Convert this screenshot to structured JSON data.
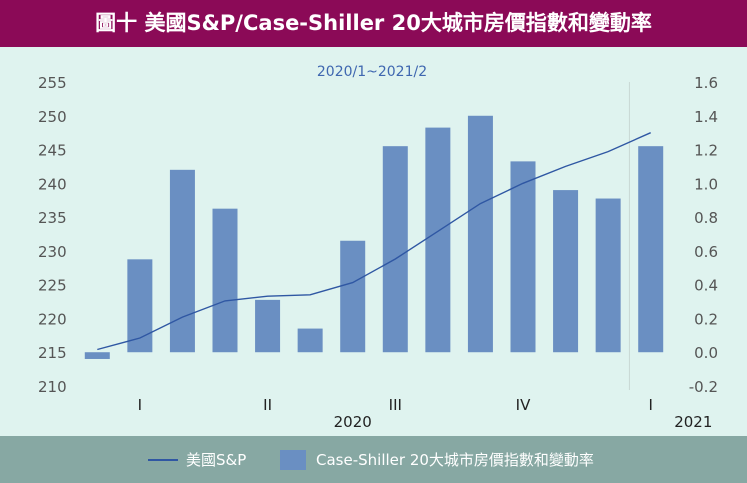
{
  "header": {
    "title": "圖十 美國S&P/Case-Shiller 20大城市房價指數和變動率"
  },
  "legend": {
    "line_label": "美國S&P",
    "bar_label": "Case-Shiller 20大城市房價指數和變動率"
  },
  "colors": {
    "title_bg": "#8b0a57",
    "plot_bg": "#dff3ef",
    "legend_bg": "#87a8a3",
    "bar": "#6a8fc2",
    "line": "#2f57a3",
    "axis_text": "#555555",
    "subtitle": "#3f67b0"
  },
  "chart_data": {
    "type": "bar",
    "title": "圖十 美國S&P/Case-Shiller 20大城市房價指數和變動率",
    "subtitle": "2020/1~2021/2",
    "y_left": {
      "ticks": [
        210,
        215,
        220,
        225,
        230,
        235,
        240,
        245,
        250,
        255
      ],
      "range": [
        210,
        255
      ]
    },
    "y_right": {
      "ticks": [
        -0.2,
        0.0,
        0.2,
        0.4,
        0.6,
        0.8,
        1.0,
        1.2,
        1.4,
        1.6
      ],
      "tick_labels": [
        "-0.2",
        "0.0",
        "0.2",
        "0.4",
        "0.6",
        "0.8",
        "1.0",
        "1.2",
        "1.4",
        "1.6"
      ],
      "range": [
        -0.2,
        1.6
      ]
    },
    "x_quarter_labels": [
      {
        "label": "I",
        "month_index": 2
      },
      {
        "label": "II",
        "month_index": 5
      },
      {
        "label": "III",
        "month_index": 8
      },
      {
        "label": "IV",
        "month_index": 11
      },
      {
        "label": "I",
        "month_index": 14
      }
    ],
    "x_year_labels": [
      {
        "label": "2020",
        "month_index": 7
      },
      {
        "label": "2021",
        "month_index": 15
      }
    ],
    "year_separator_after_month": 13,
    "bar_series": {
      "name": "Case-Shiller 20大城市房價指數和變動率",
      "axis": "right",
      "values": [
        -0.04,
        0.55,
        1.08,
        0.85,
        0.31,
        0.14,
        0.66,
        1.22,
        1.33,
        1.4,
        1.13,
        0.96,
        0.91,
        1.22
      ]
    },
    "line_series": {
      "name": "美國S&P",
      "axis": "left",
      "values": [
        215.4,
        217.1,
        220.2,
        222.6,
        223.3,
        223.5,
        225.3,
        228.8,
        232.9,
        237.0,
        240.0,
        242.5,
        244.7,
        247.5
      ]
    }
  }
}
